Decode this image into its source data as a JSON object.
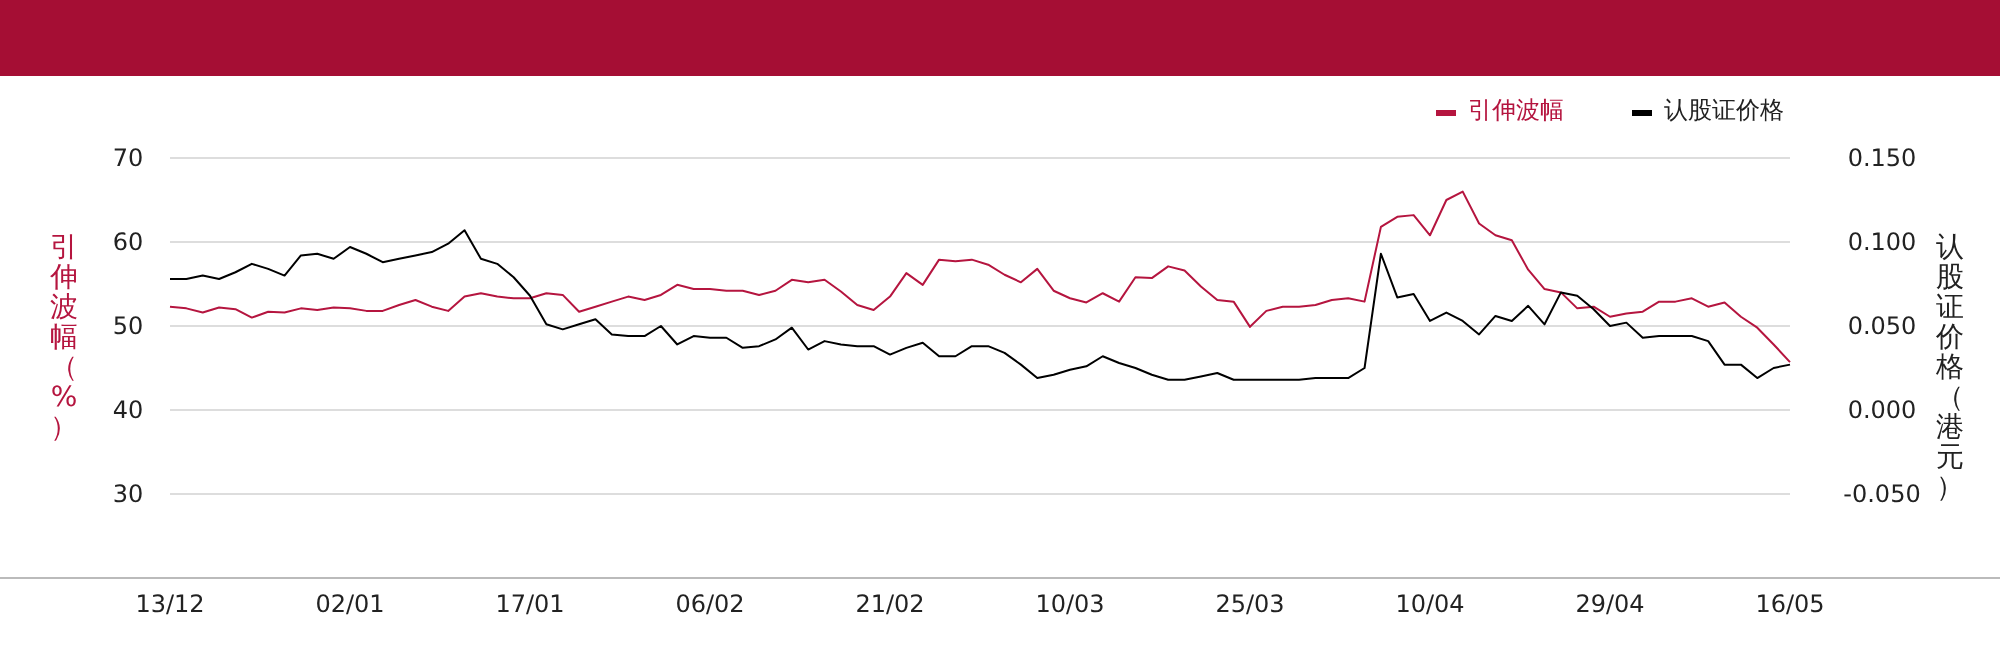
{
  "chart_data": {
    "type": "line",
    "ylabel": "引伸波幅（%）",
    "y2label": "认股证价格（港元）",
    "categories": [
      "13/12",
      null,
      null,
      null,
      null,
      null,
      null,
      null,
      null,
      null,
      null,
      "02/01",
      null,
      null,
      null,
      null,
      null,
      null,
      null,
      null,
      null,
      null,
      "17/01",
      null,
      null,
      null,
      null,
      null,
      null,
      null,
      null,
      null,
      null,
      "06/02",
      null,
      null,
      null,
      null,
      null,
      null,
      null,
      null,
      null,
      null,
      "21/02",
      null,
      null,
      null,
      null,
      null,
      null,
      null,
      null,
      null,
      null,
      "10/03",
      null,
      null,
      null,
      null,
      null,
      null,
      null,
      null,
      null,
      null,
      "25/03",
      null,
      null,
      null,
      null,
      null,
      null,
      null,
      null,
      null,
      null,
      "10/04",
      null,
      null,
      null,
      null,
      null,
      null,
      null,
      null,
      null,
      null,
      "29/04",
      null,
      null,
      null,
      null,
      null,
      null,
      null,
      null,
      null,
      null,
      "16/05"
    ],
    "series": [
      {
        "name": "引伸波幅",
        "color": "#b5153f",
        "values": [
          52.3,
          52.1,
          51.6,
          52.2,
          52.0,
          51.0,
          51.7,
          51.6,
          52.1,
          51.9,
          52.2,
          52.1,
          51.8,
          51.8,
          52.5,
          53.1,
          52.3,
          51.8,
          53.5,
          53.9,
          53.5,
          53.3,
          53.3,
          53.9,
          53.7,
          51.7,
          52.3,
          52.9,
          53.5,
          53.1,
          53.7,
          54.9,
          54.4,
          54.4,
          54.2,
          54.2,
          53.7,
          54.2,
          55.5,
          55.2,
          55.5,
          54.1,
          52.5,
          51.9,
          53.5,
          56.3,
          54.9,
          57.9,
          57.7,
          57.9,
          57.3,
          56.1,
          55.2,
          56.8,
          54.2,
          53.3,
          52.8,
          53.9,
          52.9,
          55.8,
          55.7,
          57.1,
          56.6,
          54.7,
          53.1,
          52.9,
          49.9,
          51.8,
          52.3,
          52.3,
          52.5,
          53.1,
          53.3,
          52.9,
          61.8,
          63.0,
          63.2,
          60.8,
          65.0,
          66.0,
          62.2,
          60.8,
          60.2,
          56.7,
          54.4,
          54.0,
          52.1,
          52.3,
          51.1,
          51.5,
          51.7,
          52.9,
          52.9,
          53.3,
          52.3,
          52.8,
          51.1,
          49.8,
          47.8,
          45.7
        ]
      },
      {
        "name": "认股证价格",
        "color": "#000000",
        "axis": "y2",
        "values": [
          0.078,
          0.078,
          0.08,
          0.078,
          0.082,
          0.087,
          0.084,
          0.08,
          0.092,
          0.093,
          0.09,
          0.097,
          0.093,
          0.088,
          0.09,
          0.092,
          0.094,
          0.099,
          0.107,
          0.09,
          0.087,
          0.079,
          0.068,
          0.051,
          0.048,
          0.051,
          0.054,
          0.045,
          0.044,
          0.044,
          0.05,
          0.039,
          0.044,
          0.043,
          0.043,
          0.037,
          0.038,
          0.042,
          0.049,
          0.036,
          0.041,
          0.039,
          0.038,
          0.038,
          0.033,
          0.037,
          0.04,
          0.032,
          0.032,
          0.038,
          0.038,
          0.034,
          0.027,
          0.019,
          0.021,
          0.024,
          0.026,
          0.032,
          0.028,
          0.025,
          0.021,
          0.018,
          0.018,
          0.02,
          0.022,
          0.018,
          0.018,
          0.018,
          0.018,
          0.018,
          0.019,
          0.019,
          0.019,
          0.025,
          0.093,
          0.067,
          0.069,
          0.053,
          0.058,
          0.053,
          0.045,
          0.056,
          0.053,
          0.062,
          0.051,
          0.07,
          0.068,
          0.06,
          0.05,
          0.052,
          0.043,
          0.044,
          0.044,
          0.044,
          0.041,
          0.027,
          0.027,
          0.019,
          0.025,
          0.027
        ]
      }
    ],
    "ylim": [
      20,
      70
    ],
    "yticks": [
      30,
      40,
      50,
      60,
      70
    ],
    "y2lim": [
      -0.1,
      0.15
    ],
    "y2ticks": [
      {
        "value": -0.05,
        "label": "-0.050"
      },
      {
        "value": 0,
        "label": "0.000"
      },
      {
        "value": 0.05,
        "label": "0.050"
      },
      {
        "value": 0.1,
        "label": "0.100"
      },
      {
        "value": 0.15,
        "label": "0.150"
      }
    ],
    "grid": "y",
    "legend": "top right",
    "marker": "none",
    "line_style": "solid"
  }
}
